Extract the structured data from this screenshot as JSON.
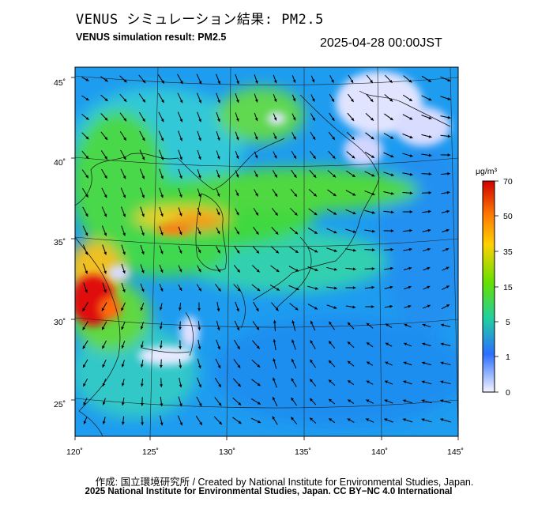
{
  "header": {
    "title_jp": "VENUS シミュレーション結果: PM2.5",
    "title_en": "VENUS simulation result: PM2.5",
    "timestamp": "2025-04-28 00:00JST"
  },
  "map": {
    "lon_range": [
      120,
      145
    ],
    "lat_range": [
      23,
      46
    ],
    "lon_labels": [
      "120˚",
      "125˚",
      "130˚",
      "135˚",
      "140˚",
      "145˚"
    ],
    "lat_labels": [
      "45˚",
      "40˚",
      "35˚",
      "30˚",
      "25˚"
    ]
  },
  "colorbar": {
    "unit": "μg/m³",
    "levels": [
      "70",
      "50",
      "35",
      "15",
      "5",
      "1",
      "0"
    ],
    "colors": [
      "#d80000",
      "#ff7a00",
      "#ffd000",
      "#66e000",
      "#20d0a0",
      "#2a6fff",
      "#e8eaff"
    ]
  },
  "footer": {
    "credit": "作成: 国立環境研究所 / Created by National Institute for Environmental Studies, Japan.",
    "license": "2025 National Institute for Environmental Studies, Japan. CC BY−NC 4.0 International"
  }
}
